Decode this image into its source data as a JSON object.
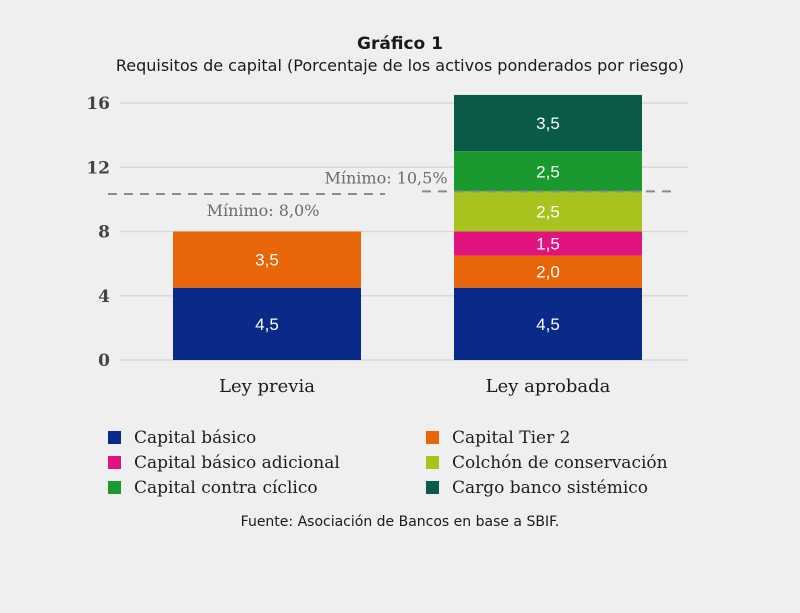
{
  "header": {
    "title": "Gráfico 1",
    "subtitle": "Requisitos de capital (Porcentaje de los activos ponderados por riesgo)"
  },
  "source": "Fuente: Asociación de Bancos en base a SBIF.",
  "chart_data": {
    "type": "bar",
    "stacked": true,
    "categories": [
      "Ley previa",
      "Ley aprobada"
    ],
    "ylim": [
      0,
      16
    ],
    "yticks": [
      0,
      4,
      8,
      12,
      16
    ],
    "grid": true,
    "legend_position": "bottom",
    "series": [
      {
        "name": "Capital básico",
        "color": "#0a2a8a",
        "values": [
          4.5,
          4.5
        ],
        "labels": [
          "4,5",
          "4,5"
        ]
      },
      {
        "name": "Capital Tier 2",
        "color": "#e8650a",
        "values": [
          3.5,
          2.0
        ],
        "labels": [
          "3,5",
          "2,0"
        ]
      },
      {
        "name": "Capital básico adicional",
        "color": "#e0137f",
        "values": [
          0,
          1.5
        ],
        "labels": [
          "",
          "1,5"
        ]
      },
      {
        "name": "Colchón de conservación",
        "color": "#a8c21e",
        "values": [
          0,
          2.5
        ],
        "labels": [
          "",
          "2,5"
        ]
      },
      {
        "name": "Capital contra cíclico",
        "color": "#1a9a2e",
        "values": [
          0,
          2.5
        ],
        "labels": [
          "",
          "2,5"
        ]
      },
      {
        "name": "Cargo banco sistémico",
        "color": "#0a5a48",
        "values": [
          0,
          3.5
        ],
        "labels": [
          "",
          "3,5"
        ]
      }
    ],
    "annotations": [
      {
        "category": "Ley previa",
        "value": 8.0,
        "text": "Mínimo: 8,0%"
      },
      {
        "category": "Ley aprobada",
        "value": 10.5,
        "text": "Mínimo: 10,5%"
      }
    ],
    "legend_order": [
      "Capital básico",
      "Capital Tier 2",
      "Capital básico adicional",
      "Colchón de conservación",
      "Capital contra cíclico",
      "Cargo banco sistémico"
    ]
  }
}
